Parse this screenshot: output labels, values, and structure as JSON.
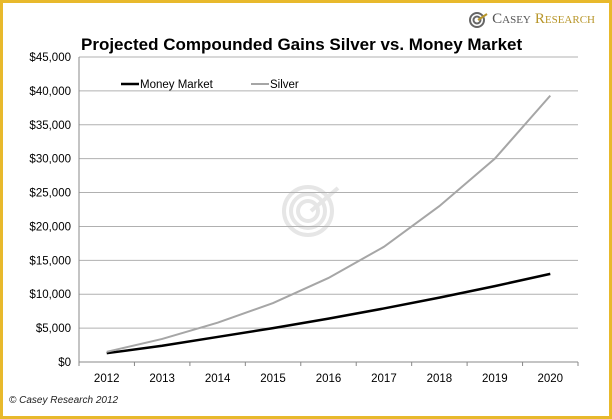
{
  "logo": {
    "casey": "Casey",
    "research": "Research"
  },
  "copyright": "© Casey Research 2012",
  "chart_data": {
    "type": "line",
    "title": "Projected Compounded Gains Silver vs. Money Market",
    "xlabel": "",
    "ylabel": "",
    "categories": [
      "2012",
      "2013",
      "2014",
      "2015",
      "2016",
      "2017",
      "2018",
      "2019",
      "2020"
    ],
    "ylim": [
      0,
      45000
    ],
    "yticks": [
      0,
      5000,
      10000,
      15000,
      20000,
      25000,
      30000,
      35000,
      40000,
      45000
    ],
    "ytick_labels": [
      "$0",
      "$5,000",
      "$10,000",
      "$15,000",
      "$20,000",
      "$25,000",
      "$30,000",
      "$35,000",
      "$40,000",
      "$45,000"
    ],
    "grid": true,
    "legend": "top-left",
    "series": [
      {
        "name": "Money Market",
        "color": "#000000",
        "values": [
          1300,
          2400,
          3700,
          5000,
          6400,
          7900,
          9500,
          11200,
          13000
        ]
      },
      {
        "name": "Silver",
        "color": "#a6a6a6",
        "values": [
          1500,
          3400,
          5800,
          8700,
          12400,
          17000,
          23000,
          30000,
          39300
        ]
      }
    ]
  }
}
